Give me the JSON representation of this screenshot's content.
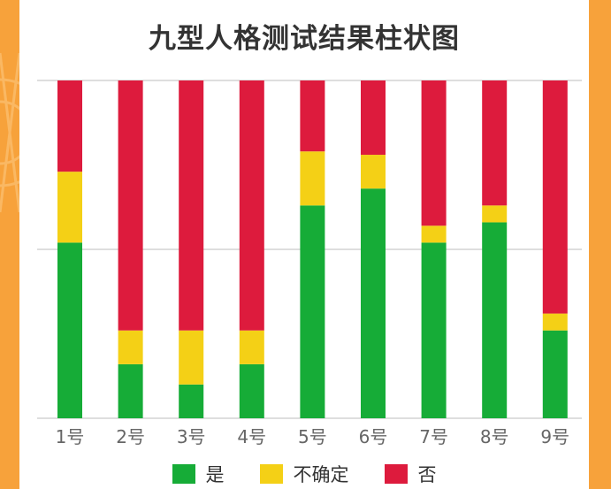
{
  "chart_data": {
    "type": "bar",
    "stacked": true,
    "normalized": true,
    "title": "九型人格测试结果柱状图",
    "categories": [
      "1号",
      "2号",
      "3号",
      "4号",
      "5号",
      "6号",
      "7号",
      "8号",
      "9号"
    ],
    "series": [
      {
        "name": "是",
        "color": "#16ac37",
        "values": [
          52,
          16,
          10,
          16,
          63,
          68,
          52,
          58,
          26
        ]
      },
      {
        "name": "不确定",
        "color": "#f4d016",
        "values": [
          21,
          10,
          16,
          10,
          16,
          10,
          5,
          5,
          5
        ]
      },
      {
        "name": "否",
        "color": "#dd1b3d",
        "values": [
          27,
          74,
          74,
          74,
          21,
          22,
          43,
          37,
          69
        ]
      }
    ],
    "ylim": [
      0,
      100
    ],
    "gridlines": [
      0,
      50,
      100
    ],
    "xlabel": "",
    "ylabel": "",
    "legend_position": "bottom"
  }
}
